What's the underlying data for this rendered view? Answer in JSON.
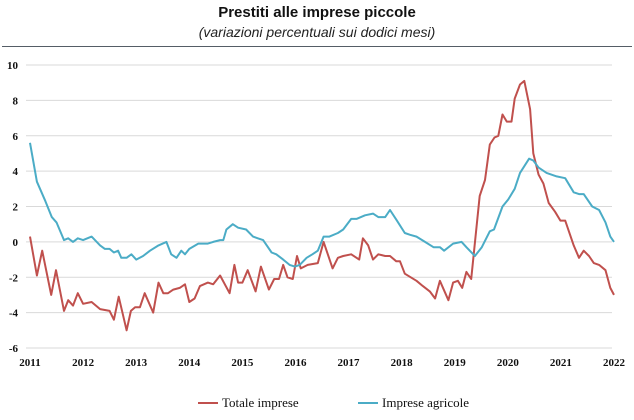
{
  "chart_data": {
    "type": "line",
    "title": "Prestiti alle imprese piccole",
    "subtitle": "(variazioni percentuali sui dodici mesi)",
    "xlabel": "",
    "ylabel": "",
    "xlim": [
      2011,
      2022
    ],
    "ylim": [
      -6,
      10
    ],
    "x_ticks": [
      "2011",
      "2012",
      "2013",
      "2014",
      "2015",
      "2016",
      "2017",
      "2018",
      "2019",
      "2020",
      "2021",
      "2022"
    ],
    "y_ticks": [
      "10",
      "8",
      "6",
      "4",
      "2",
      "0",
      "-2",
      "-4",
      "-6"
    ],
    "grid": true,
    "legend": "bottom",
    "series": [
      {
        "name": "Totale imprese",
        "color": "#c0504d",
        "points": [
          [
            2011.0,
            0.3
          ],
          [
            2011.13,
            -1.9
          ],
          [
            2011.23,
            -0.5
          ],
          [
            2011.4,
            -3.0
          ],
          [
            2011.49,
            -1.6
          ],
          [
            2011.64,
            -3.9
          ],
          [
            2011.72,
            -3.3
          ],
          [
            2011.81,
            -3.6
          ],
          [
            2011.9,
            -2.9
          ],
          [
            2012.0,
            -3.5
          ],
          [
            2012.16,
            -3.4
          ],
          [
            2012.32,
            -3.8
          ],
          [
            2012.5,
            -3.9
          ],
          [
            2012.58,
            -4.4
          ],
          [
            2012.67,
            -3.1
          ],
          [
            2012.82,
            -5.0
          ],
          [
            2012.9,
            -3.9
          ],
          [
            2012.98,
            -3.7
          ],
          [
            2013.07,
            -3.7
          ],
          [
            2013.16,
            -2.9
          ],
          [
            2013.32,
            -4.0
          ],
          [
            2013.42,
            -2.3
          ],
          [
            2013.51,
            -2.9
          ],
          [
            2013.6,
            -2.9
          ],
          [
            2013.7,
            -2.7
          ],
          [
            2013.82,
            -2.6
          ],
          [
            2013.92,
            -2.4
          ],
          [
            2014.0,
            -3.4
          ],
          [
            2014.1,
            -3.2
          ],
          [
            2014.2,
            -2.5
          ],
          [
            2014.35,
            -2.3
          ],
          [
            2014.45,
            -2.4
          ],
          [
            2014.58,
            -1.9
          ],
          [
            2014.76,
            -2.9
          ],
          [
            2014.85,
            -1.3
          ],
          [
            2014.92,
            -2.3
          ],
          [
            2015.0,
            -2.3
          ],
          [
            2015.1,
            -1.6
          ],
          [
            2015.25,
            -2.8
          ],
          [
            2015.35,
            -1.4
          ],
          [
            2015.5,
            -2.7
          ],
          [
            2015.6,
            -2.1
          ],
          [
            2015.69,
            -2.1
          ],
          [
            2015.77,
            -1.3
          ],
          [
            2015.85,
            -2.0
          ],
          [
            2015.95,
            -2.1
          ],
          [
            2016.03,
            -0.8
          ],
          [
            2016.1,
            -1.5
          ],
          [
            2016.23,
            -1.3
          ],
          [
            2016.42,
            -1.2
          ],
          [
            2016.53,
            0.0
          ],
          [
            2016.7,
            -1.5
          ],
          [
            2016.8,
            -0.9
          ],
          [
            2016.9,
            -0.8
          ],
          [
            2017.05,
            -0.7
          ],
          [
            2017.2,
            -1.0
          ],
          [
            2017.27,
            0.2
          ],
          [
            2017.37,
            -0.2
          ],
          [
            2017.46,
            -1.0
          ],
          [
            2017.56,
            -0.7
          ],
          [
            2017.69,
            -0.8
          ],
          [
            2017.78,
            -0.8
          ],
          [
            2017.9,
            -1.1
          ],
          [
            2017.97,
            -1.1
          ],
          [
            2018.06,
            -1.8
          ],
          [
            2018.28,
            -2.2
          ],
          [
            2018.4,
            -2.5
          ],
          [
            2018.53,
            -2.8
          ],
          [
            2018.63,
            -3.2
          ],
          [
            2018.72,
            -2.2
          ],
          [
            2018.88,
            -3.3
          ],
          [
            2018.97,
            -2.3
          ],
          [
            2019.06,
            -2.2
          ],
          [
            2019.14,
            -2.6
          ],
          [
            2019.22,
            -1.7
          ],
          [
            2019.31,
            -2.1
          ],
          [
            2019.47,
            2.6
          ],
          [
            2019.57,
            3.5
          ],
          [
            2019.66,
            5.5
          ],
          [
            2019.75,
            5.9
          ],
          [
            2019.82,
            6.0
          ],
          [
            2019.9,
            7.2
          ],
          [
            2019.98,
            6.8
          ],
          [
            2020.07,
            6.8
          ],
          [
            2020.13,
            8.1
          ],
          [
            2020.23,
            8.9
          ],
          [
            2020.31,
            9.1
          ],
          [
            2020.42,
            7.5
          ],
          [
            2020.48,
            5.0
          ],
          [
            2020.58,
            3.8
          ],
          [
            2020.67,
            3.3
          ],
          [
            2020.77,
            2.2
          ],
          [
            2020.89,
            1.7
          ],
          [
            2020.99,
            1.2
          ],
          [
            2021.08,
            1.2
          ],
          [
            2021.24,
            -0.2
          ],
          [
            2021.34,
            -0.9
          ],
          [
            2021.43,
            -0.5
          ],
          [
            2021.53,
            -0.8
          ],
          [
            2021.62,
            -1.2
          ],
          [
            2021.72,
            -1.3
          ],
          [
            2021.84,
            -1.6
          ],
          [
            2021.93,
            -2.6
          ],
          [
            2022.0,
            -3.0
          ]
        ]
      },
      {
        "name": "Imprese agricole",
        "color": "#4bacc6",
        "points": [
          [
            2011.0,
            5.6
          ],
          [
            2011.13,
            3.4
          ],
          [
            2011.29,
            2.3
          ],
          [
            2011.41,
            1.4
          ],
          [
            2011.5,
            1.1
          ],
          [
            2011.64,
            0.1
          ],
          [
            2011.72,
            0.2
          ],
          [
            2011.81,
            0.0
          ],
          [
            2011.9,
            0.2
          ],
          [
            2012.0,
            0.1
          ],
          [
            2012.16,
            0.3
          ],
          [
            2012.32,
            -0.2
          ],
          [
            2012.41,
            -0.4
          ],
          [
            2012.5,
            -0.4
          ],
          [
            2012.58,
            -0.6
          ],
          [
            2012.66,
            -0.5
          ],
          [
            2012.72,
            -0.9
          ],
          [
            2012.82,
            -0.9
          ],
          [
            2012.91,
            -0.7
          ],
          [
            2013.0,
            -1.0
          ],
          [
            2013.13,
            -0.8
          ],
          [
            2013.26,
            -0.5
          ],
          [
            2013.42,
            -0.2
          ],
          [
            2013.57,
            0.0
          ],
          [
            2013.66,
            -0.7
          ],
          [
            2013.76,
            -0.9
          ],
          [
            2013.85,
            -0.5
          ],
          [
            2013.92,
            -0.7
          ],
          [
            2014.0,
            -0.4
          ],
          [
            2014.17,
            -0.1
          ],
          [
            2014.35,
            -0.1
          ],
          [
            2014.45,
            0.0
          ],
          [
            2014.58,
            0.1
          ],
          [
            2014.64,
            0.1
          ],
          [
            2014.7,
            0.7
          ],
          [
            2014.82,
            1.0
          ],
          [
            2014.92,
            0.8
          ],
          [
            2015.07,
            0.7
          ],
          [
            2015.2,
            0.3
          ],
          [
            2015.29,
            0.2
          ],
          [
            2015.39,
            0.1
          ],
          [
            2015.55,
            -0.6
          ],
          [
            2015.64,
            -0.7
          ],
          [
            2015.77,
            -1.0
          ],
          [
            2015.89,
            -1.3
          ],
          [
            2015.99,
            -1.4
          ],
          [
            2016.08,
            -1.3
          ],
          [
            2016.21,
            -0.9
          ],
          [
            2016.32,
            -0.7
          ],
          [
            2016.42,
            -0.5
          ],
          [
            2016.53,
            0.3
          ],
          [
            2016.64,
            0.3
          ],
          [
            2016.8,
            0.5
          ],
          [
            2016.9,
            0.7
          ],
          [
            2017.05,
            1.3
          ],
          [
            2017.15,
            1.3
          ],
          [
            2017.31,
            1.5
          ],
          [
            2017.46,
            1.6
          ],
          [
            2017.56,
            1.4
          ],
          [
            2017.69,
            1.4
          ],
          [
            2017.78,
            1.8
          ],
          [
            2017.91,
            1.2
          ],
          [
            2018.06,
            0.5
          ],
          [
            2018.16,
            0.4
          ],
          [
            2018.28,
            0.3
          ],
          [
            2018.44,
            0.0
          ],
          [
            2018.6,
            -0.3
          ],
          [
            2018.72,
            -0.3
          ],
          [
            2018.8,
            -0.5
          ],
          [
            2018.97,
            -0.1
          ],
          [
            2019.13,
            0.0
          ],
          [
            2019.22,
            -0.3
          ],
          [
            2019.38,
            -0.8
          ],
          [
            2019.51,
            -0.3
          ],
          [
            2019.66,
            0.6
          ],
          [
            2019.74,
            0.7
          ],
          [
            2019.9,
            2.0
          ],
          [
            2020.01,
            2.4
          ],
          [
            2020.13,
            3.0
          ],
          [
            2020.23,
            3.9
          ],
          [
            2020.4,
            4.7
          ],
          [
            2020.48,
            4.6
          ],
          [
            2020.58,
            4.2
          ],
          [
            2020.73,
            3.9
          ],
          [
            2020.92,
            3.7
          ],
          [
            2021.08,
            3.6
          ],
          [
            2021.24,
            2.8
          ],
          [
            2021.34,
            2.7
          ],
          [
            2021.43,
            2.7
          ],
          [
            2021.59,
            2.0
          ],
          [
            2021.72,
            1.8
          ],
          [
            2021.84,
            1.1
          ],
          [
            2021.93,
            0.3
          ],
          [
            2022.0,
            0.0
          ]
        ]
      }
    ]
  }
}
